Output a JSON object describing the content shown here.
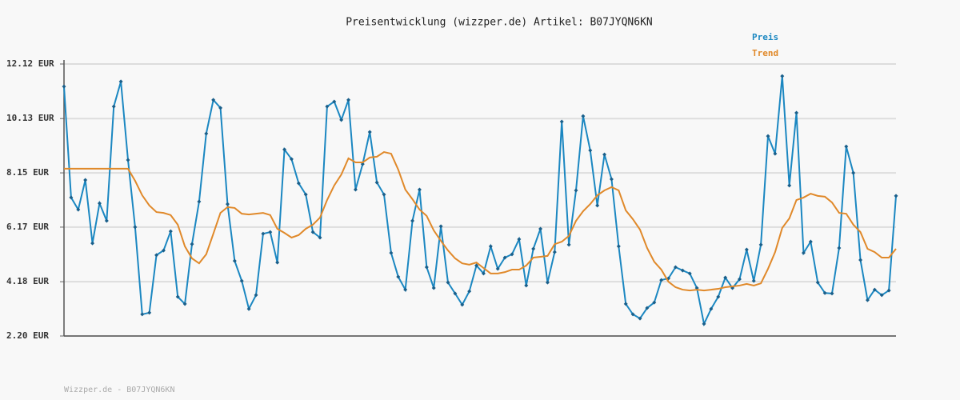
{
  "chart_data": {
    "type": "line",
    "title": "Preisentwicklung (wizzper.de) Artikel: B07JYQN6KN",
    "footer": "Wizzper.de - B07JYQN6KN",
    "ylim": [
      2.2,
      12.12
    ],
    "yticks": [
      {
        "value": 2.2,
        "label": "2.20 EUR"
      },
      {
        "value": 4.18,
        "label": "4.18 EUR"
      },
      {
        "value": 6.17,
        "label": "6.17 EUR"
      },
      {
        "value": 8.15,
        "label": "8.15 EUR"
      },
      {
        "value": 10.13,
        "label": "10.13 EUR"
      },
      {
        "value": 12.12,
        "label": "12.12 EUR"
      }
    ],
    "grid": true,
    "legend": "top-right",
    "series": [
      {
        "name": "Preis",
        "color": "#1b87c1",
        "markers": true,
        "values": [
          11.3,
          7.25,
          6.81,
          7.89,
          5.58,
          7.04,
          6.4,
          10.57,
          11.48,
          8.62,
          6.17,
          2.99,
          3.05,
          5.15,
          5.32,
          6.02,
          3.63,
          3.37,
          5.55,
          7.1,
          9.58,
          10.81,
          10.52,
          7.01,
          4.94,
          4.21,
          3.19,
          3.69,
          5.93,
          5.99,
          4.88,
          9.0,
          8.65,
          7.77,
          7.36,
          5.99,
          5.79,
          10.57,
          10.75,
          10.08,
          10.81,
          7.54,
          8.47,
          9.64,
          7.8,
          7.36,
          5.23,
          4.36,
          3.89,
          6.4,
          7.54,
          4.71,
          3.95,
          6.2,
          4.15,
          3.75,
          3.34,
          3.83,
          4.77,
          4.48,
          5.47,
          4.65,
          5.06,
          5.18,
          5.73,
          4.04,
          5.38,
          6.11,
          4.15,
          5.26,
          10.02,
          5.53,
          7.51,
          10.22,
          8.97,
          6.96,
          8.82,
          7.92,
          5.47,
          3.37,
          2.99,
          2.84,
          3.22,
          3.42,
          4.24,
          4.3,
          4.71,
          4.59,
          4.48,
          3.95,
          2.64,
          3.19,
          3.63,
          4.33,
          3.95,
          4.27,
          5.35,
          4.21,
          5.53,
          9.49,
          8.85,
          11.68,
          7.69,
          10.34,
          5.23,
          5.64,
          4.15,
          3.77,
          3.75,
          5.41,
          9.11,
          8.15,
          4.97,
          3.51,
          3.89,
          3.69,
          3.86,
          7.31
        ]
      },
      {
        "name": "Trend",
        "color": "#e0892a",
        "markers": false,
        "values": [
          8.3,
          8.3,
          8.3,
          8.3,
          8.3,
          8.3,
          8.3,
          8.3,
          8.3,
          8.3,
          7.86,
          7.33,
          6.96,
          6.72,
          6.69,
          6.61,
          6.26,
          5.47,
          5.03,
          4.85,
          5.18,
          5.93,
          6.69,
          6.9,
          6.87,
          6.66,
          6.63,
          6.66,
          6.69,
          6.61,
          6.11,
          5.96,
          5.79,
          5.88,
          6.11,
          6.26,
          6.52,
          7.16,
          7.69,
          8.09,
          8.68,
          8.53,
          8.53,
          8.71,
          8.74,
          8.91,
          8.85,
          8.27,
          7.54,
          7.19,
          6.81,
          6.58,
          6.05,
          5.67,
          5.32,
          5.03,
          4.85,
          4.8,
          4.88,
          4.68,
          4.48,
          4.48,
          4.53,
          4.62,
          4.62,
          4.77,
          5.06,
          5.09,
          5.12,
          5.55,
          5.64,
          5.85,
          6.4,
          6.75,
          7.01,
          7.33,
          7.51,
          7.63,
          7.51,
          6.78,
          6.46,
          6.08,
          5.41,
          4.91,
          4.62,
          4.18,
          3.98,
          3.89,
          3.86,
          3.89,
          3.86,
          3.89,
          3.92,
          3.98,
          4.01,
          4.04,
          4.1,
          4.04,
          4.12,
          4.65,
          5.26,
          6.14,
          6.49,
          7.16,
          7.25,
          7.39,
          7.31,
          7.28,
          7.07,
          6.69,
          6.66,
          6.26,
          5.99,
          5.38,
          5.26,
          5.06,
          5.06,
          5.38
        ]
      }
    ]
  }
}
